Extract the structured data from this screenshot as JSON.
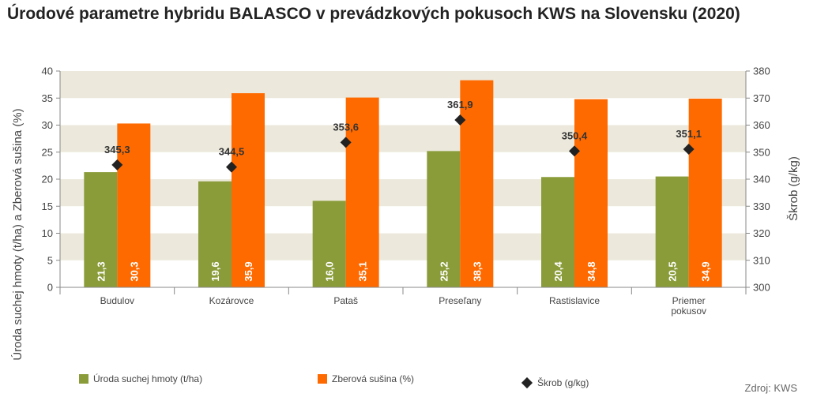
{
  "title": "Úrodové parametre hybridu BALASCO v prevádzkových pokusoch KWS na Slovensku (2020)",
  "source": "Zdroj: KWS",
  "colors": {
    "bar1": "#8a9c3a",
    "bar2": "#ff6a00",
    "marker": "#222222",
    "band": "#ece9dc",
    "axis": "#888888"
  },
  "chart_data": {
    "type": "bar",
    "categories": [
      [
        "Budulov"
      ],
      [
        "Kozárovce"
      ],
      [
        "Pataš"
      ],
      [
        "Preseľany"
      ],
      [
        "Rastislavice"
      ],
      [
        "Priemer",
        "pokusov"
      ]
    ],
    "series": [
      {
        "name": "Úroda suchej hmoty (t/ha)",
        "axis": "left",
        "values": [
          21.3,
          19.6,
          16.0,
          25.2,
          20.4,
          20.5
        ],
        "labels": [
          "21,3",
          "19,6",
          "16,0",
          "25,2",
          "20,4",
          "20,5"
        ]
      },
      {
        "name": "Zberová sušina (%)",
        "axis": "left",
        "values": [
          30.3,
          35.9,
          35.1,
          38.3,
          34.8,
          34.9
        ],
        "labels": [
          "30,3",
          "35,9",
          "35,1",
          "38,3",
          "34,8",
          "34,9"
        ]
      },
      {
        "name": "Škrob (g/kg)",
        "axis": "right",
        "type": "scatter",
        "values": [
          345.3,
          344.5,
          353.6,
          361.9,
          350.4,
          351.1
        ],
        "labels": [
          "345,3",
          "344,5",
          "353,6",
          "361,9",
          "350,4",
          "351,1"
        ]
      }
    ],
    "ylabel": "Úroda suchej hmoty (t/ha) a Zberová sušina (%)",
    "ylim": [
      0,
      40
    ],
    "yticks": [
      0,
      5,
      10,
      15,
      20,
      25,
      30,
      35,
      40
    ],
    "y2label": "Škrob (g/kg)",
    "y2lim": [
      300,
      380
    ],
    "y2ticks": [
      300,
      310,
      320,
      330,
      340,
      350,
      360,
      370,
      380
    ],
    "grid": "alternating horizontal bands",
    "legend": "bottom"
  }
}
